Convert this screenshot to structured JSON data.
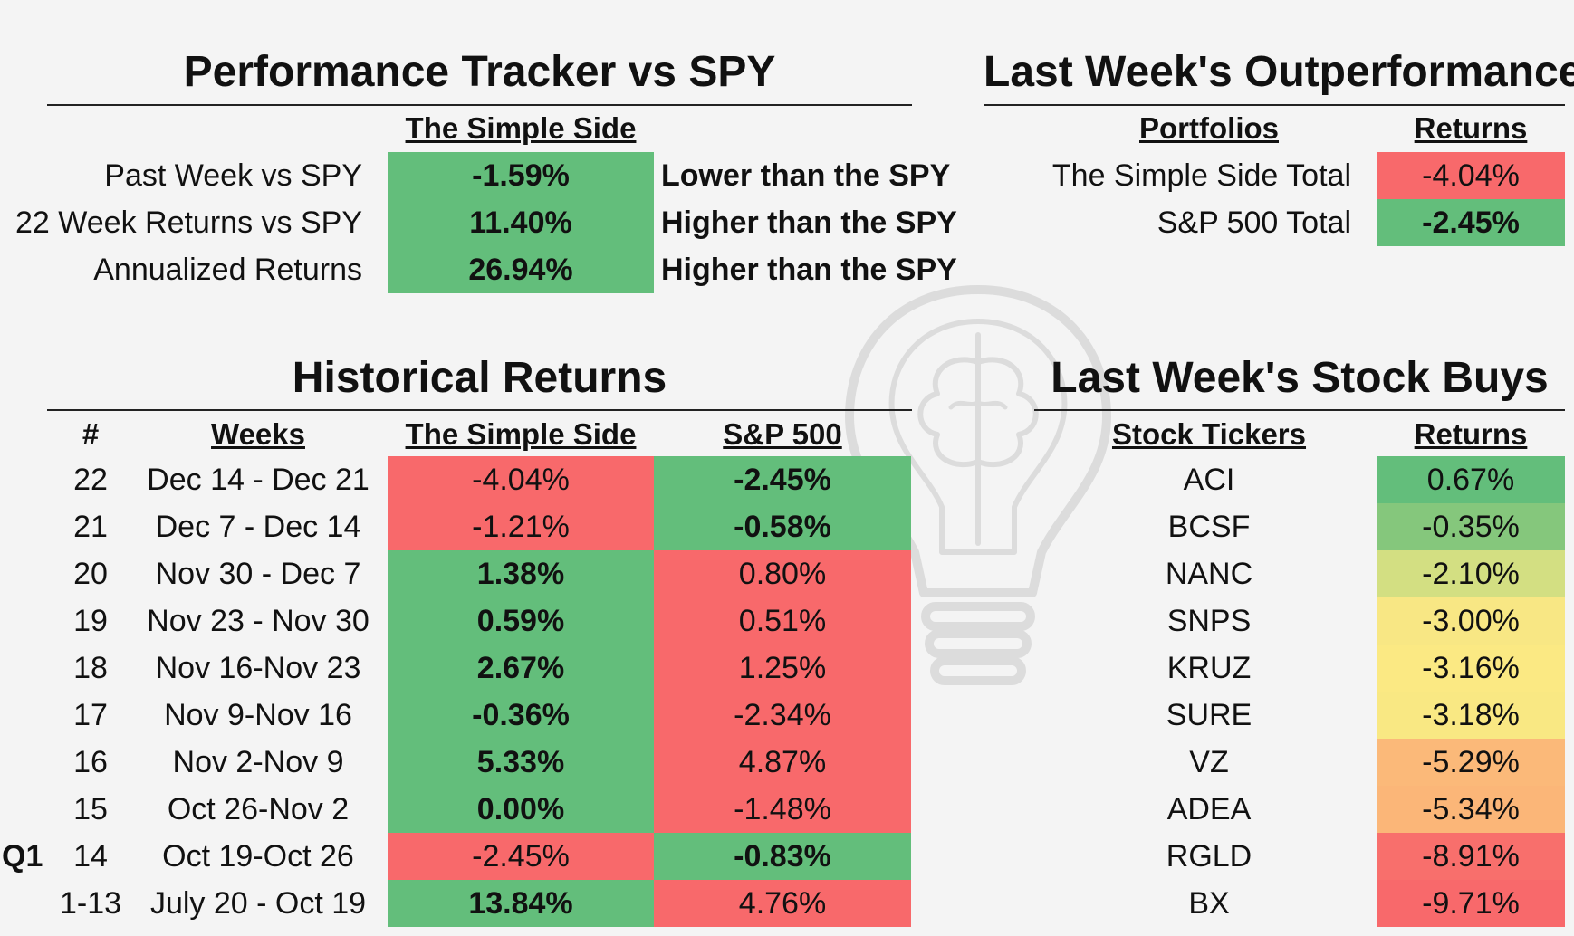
{
  "tracker": {
    "title": "Performance Tracker vs SPY",
    "column_header": "The Simple Side",
    "rows": [
      {
        "label": "Past Week vs SPY",
        "value": "-1.59%",
        "note": "Lower than the SPY",
        "color": "#63be7b"
      },
      {
        "label": "22 Week Returns vs SPY",
        "value": "11.40%",
        "note": "Higher than the SPY",
        "color": "#63be7b"
      },
      {
        "label": "Annualized Returns",
        "value": "26.94%",
        "note": "Higher than the SPY",
        "color": "#63be7b"
      }
    ]
  },
  "outperformance": {
    "title": "Last Week's Outperformance",
    "headers": {
      "portfolios": "Portfolios",
      "returns": "Returns"
    },
    "rows": [
      {
        "name": "The Simple Side Total",
        "value": "-4.04%",
        "color": "#f8696b"
      },
      {
        "name": "S&P 500 Total",
        "value": "-2.45%",
        "color": "#63be7b"
      }
    ]
  },
  "historical": {
    "title": "Historical Returns",
    "headers": {
      "num": "#",
      "weeks": "Weeks",
      "simple": "The Simple Side",
      "sp": "S&P 500"
    },
    "side_label": "Q1",
    "rows": [
      {
        "num": "22",
        "weeks": "Dec 14 - Dec 21",
        "simple": "-4.04%",
        "simple_color": "#f8696b",
        "sp": "-2.45%",
        "sp_color": "#63be7b"
      },
      {
        "num": "21",
        "weeks": "Dec 7 - Dec 14",
        "simple": "-1.21%",
        "simple_color": "#f8696b",
        "sp": "-0.58%",
        "sp_color": "#63be7b"
      },
      {
        "num": "20",
        "weeks": "Nov 30 - Dec 7",
        "simple": "1.38%",
        "simple_color": "#63be7b",
        "sp": "0.80%",
        "sp_color": "#f8696b"
      },
      {
        "num": "19",
        "weeks": "Nov 23 - Nov 30",
        "simple": "0.59%",
        "simple_color": "#63be7b",
        "sp": "0.51%",
        "sp_color": "#f8696b"
      },
      {
        "num": "18",
        "weeks": "Nov 16-Nov 23",
        "simple": "2.67%",
        "simple_color": "#63be7b",
        "sp": "1.25%",
        "sp_color": "#f8696b"
      },
      {
        "num": "17",
        "weeks": "Nov 9-Nov 16",
        "simple": "-0.36%",
        "simple_color": "#63be7b",
        "sp": "-2.34%",
        "sp_color": "#f8696b"
      },
      {
        "num": "16",
        "weeks": "Nov 2-Nov 9",
        "simple": "5.33%",
        "simple_color": "#63be7b",
        "sp": "4.87%",
        "sp_color": "#f8696b"
      },
      {
        "num": "15",
        "weeks": "Oct 26-Nov 2",
        "simple": "0.00%",
        "simple_color": "#63be7b",
        "sp": "-1.48%",
        "sp_color": "#f8696b"
      },
      {
        "num": "14",
        "weeks": "Oct 19-Oct 26",
        "simple": "-2.45%",
        "simple_color": "#f8696b",
        "sp": "-0.83%",
        "sp_color": "#63be7b"
      },
      {
        "num": "1-13",
        "weeks": "July 20 - Oct 19",
        "simple": "13.84%",
        "simple_color": "#63be7b",
        "sp": "4.76%",
        "sp_color": "#f8696b"
      }
    ]
  },
  "stock_buys": {
    "title": "Last Week's Stock Buys",
    "headers": {
      "tickers": "Stock Tickers",
      "returns": "Returns"
    },
    "rows": [
      {
        "ticker": "ACI",
        "value": "0.67%",
        "color": "#63be7b"
      },
      {
        "ticker": "BCSF",
        "value": "-0.35%",
        "color": "#85c77c"
      },
      {
        "ticker": "NANC",
        "value": "-2.10%",
        "color": "#d3df82"
      },
      {
        "ticker": "SNPS",
        "value": "-3.00%",
        "color": "#f8e784"
      },
      {
        "ticker": "KRUZ",
        "value": "-3.16%",
        "color": "#fbe983"
      },
      {
        "ticker": "SURE",
        "value": "-3.18%",
        "color": "#f9e883"
      },
      {
        "ticker": "VZ",
        "value": "-5.29%",
        "color": "#fbb979"
      },
      {
        "ticker": "ADEA",
        "value": "-5.34%",
        "color": "#fbb678"
      },
      {
        "ticker": "RGLD",
        "value": "-8.91%",
        "color": "#f86f6c"
      },
      {
        "ticker": "BX",
        "value": "-9.71%",
        "color": "#f8696b"
      }
    ]
  },
  "watermark": {
    "icon": "brain-lightbulb-icon"
  }
}
